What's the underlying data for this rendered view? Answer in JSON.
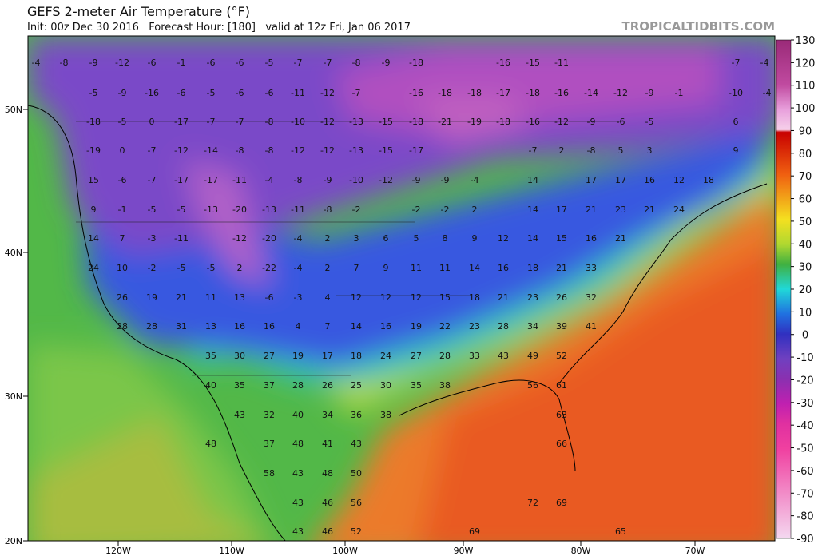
{
  "header": {
    "title": "GEFS 2-meter Air Temperature (°F)",
    "subtitle": "Init: 00z Dec 30 2016   Forecast Hour: [180]   valid at 12z Fri, Jan 06 2017",
    "brand": "TROPICALTIDBITS.COM"
  },
  "map": {
    "latitude_labels": [
      "50N",
      "40N",
      "30N",
      "20N"
    ],
    "longitude_labels": [
      "120W",
      "110W",
      "100W",
      "90W",
      "80W",
      "70W"
    ],
    "rows": [
      [
        -4,
        -8,
        -9,
        -12,
        -6,
        -1,
        -6,
        -6,
        -5,
        -7,
        -7,
        -8,
        -9,
        -18,
        -16,
        -15,
        -11,
        -7,
        -4
      ],
      [
        -5,
        -9,
        -16,
        -6,
        -5,
        -6,
        -6,
        -11,
        -12,
        -7,
        -16,
        -18,
        -18,
        -17,
        -18,
        -16,
        -14,
        -12,
        -9,
        -1,
        -10,
        -4
      ],
      [
        -18,
        -5,
        0,
        -17,
        -7,
        -7,
        -8,
        -10,
        -12,
        -13,
        -15,
        -18,
        -21,
        -19,
        -18,
        -16,
        -12,
        -9,
        -6,
        -5,
        6
      ],
      [
        -19,
        0,
        -7,
        -12,
        -14,
        -8,
        -8,
        -12,
        -12,
        -13,
        -15,
        -17,
        -7,
        2,
        -8,
        5,
        3,
        9
      ],
      [
        15,
        -6,
        -7,
        -17,
        -17,
        -11,
        -4,
        -8,
        -9,
        -10,
        -12,
        -9,
        -9,
        -4,
        14,
        17,
        17,
        16,
        12,
        18
      ],
      [
        9,
        -1,
        -5,
        -5,
        -13,
        -20,
        -13,
        -11,
        -8,
        -2,
        -2,
        -2,
        2,
        14,
        17,
        21,
        23,
        21,
        24
      ],
      [
        14,
        7,
        -3,
        -11,
        -12,
        -20,
        -4,
        2,
        3,
        6,
        5,
        8,
        9,
        12,
        14,
        15,
        16,
        21
      ],
      [
        24,
        10,
        -2,
        -5,
        -5,
        2,
        -22,
        -4,
        2,
        7,
        9,
        11,
        11,
        14,
        16,
        18,
        21,
        33
      ],
      [
        26,
        19,
        21,
        11,
        13,
        -6,
        -3,
        4,
        12,
        12,
        12,
        15,
        18,
        21,
        23,
        26,
        32
      ],
      [
        28,
        28,
        31,
        13,
        16,
        16,
        4,
        7,
        14,
        16,
        19,
        22,
        23,
        28,
        34,
        39,
        41
      ],
      [
        35,
        30,
        27,
        19,
        17,
        18,
        24,
        27,
        28,
        33,
        43,
        49,
        52
      ],
      [
        40,
        35,
        37,
        28,
        26,
        25,
        30,
        35,
        38,
        56,
        61
      ],
      [
        43,
        32,
        40,
        34,
        36,
        38,
        63
      ],
      [
        48,
        37,
        48,
        41,
        43,
        66
      ],
      [
        58,
        43,
        48,
        50
      ],
      [
        43,
        46,
        56,
        72,
        69
      ],
      [
        43,
        46,
        52,
        69,
        65
      ]
    ]
  },
  "colorbar": {
    "ticks": [
      130,
      120,
      110,
      100,
      90,
      80,
      70,
      60,
      50,
      40,
      30,
      20,
      10,
      0,
      -10,
      -20,
      -30,
      -40,
      -50,
      -60,
      -70,
      -80,
      -90
    ]
  }
}
